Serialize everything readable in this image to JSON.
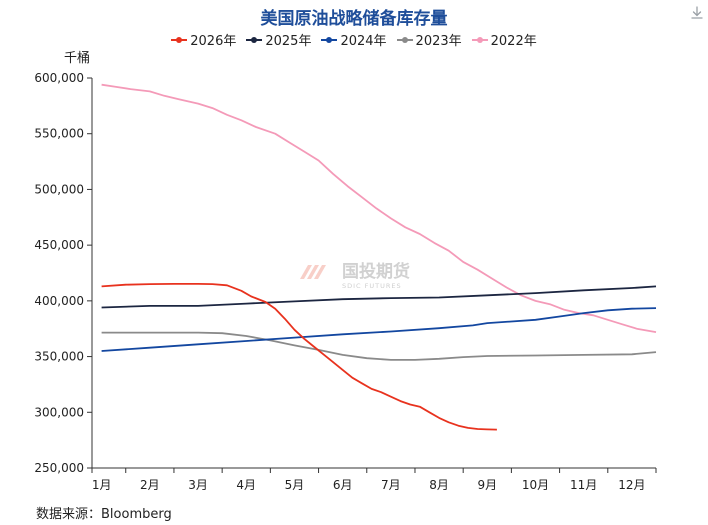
{
  "chart_data": {
    "type": "line",
    "title": "美国原油战略储备库存量",
    "unit_label": "千桶",
    "source": "数据来源：Bloomberg",
    "watermark": "国投期货",
    "watermark_en": "SDIC FUTURES",
    "ylim": [
      250000,
      600000
    ],
    "y_ticks": [
      250000,
      300000,
      350000,
      400000,
      450000,
      500000,
      550000,
      600000
    ],
    "y_tick_labels": [
      "250,000",
      "300,000",
      "350,000",
      "400,000",
      "450,000",
      "500,000",
      "550,000",
      "600,000"
    ],
    "xlim": [
      0.8,
      12.5
    ],
    "x_ticks": [
      1,
      2,
      3,
      4,
      5,
      6,
      7,
      8,
      9,
      10,
      11,
      12
    ],
    "x_tick_labels": [
      "1月",
      "2月",
      "3月",
      "4月",
      "5月",
      "6月",
      "7月",
      "8月",
      "9月",
      "10月",
      "11月",
      "12月"
    ],
    "grid": false,
    "legend_position": "top",
    "series": [
      {
        "name": "2026年",
        "color": "#e8321e",
        "x": [
          1,
          1.5,
          2,
          2.5,
          3,
          3.3,
          3.6,
          3.9,
          4.1,
          4.4,
          4.6,
          4.8,
          5.0,
          5.2,
          5.4,
          5.6,
          5.8,
          6.0,
          6.2,
          6.4,
          6.6,
          6.8,
          7.0,
          7.2,
          7.4,
          7.6,
          7.8,
          8.0,
          8.2,
          8.4,
          8.6,
          8.8,
          9.0,
          9.2
        ],
        "y": [
          413000,
          414500,
          415000,
          415200,
          415200,
          415000,
          414000,
          409000,
          404000,
          399000,
          393000,
          384000,
          374000,
          366000,
          359000,
          352000,
          345000,
          338000,
          331000,
          326000,
          321000,
          318000,
          314000,
          310000,
          307000,
          305000,
          300000,
          295000,
          291000,
          288000,
          286000,
          285000,
          284600,
          284500
        ]
      },
      {
        "name": "2025年",
        "color": "#1c2641",
        "x": [
          1,
          2,
          3,
          4,
          5,
          6,
          7,
          8,
          9,
          10,
          11,
          12,
          12.5
        ],
        "y": [
          394000,
          395500,
          395500,
          397500,
          399500,
          401500,
          402500,
          403000,
          405000,
          407000,
          409500,
          411500,
          413000
        ]
      },
      {
        "name": "2024年",
        "color": "#1347a0",
        "x": [
          1,
          2,
          3,
          4,
          5,
          6,
          7,
          8,
          8.7,
          9,
          9.5,
          10,
          10.5,
          11,
          11.5,
          12,
          12.5
        ],
        "y": [
          355000,
          358000,
          361000,
          364000,
          367000,
          370000,
          372500,
          375500,
          378000,
          380000,
          381500,
          383000,
          386000,
          389000,
          391500,
          393000,
          393500
        ]
      },
      {
        "name": "2023年",
        "color": "#8a8a8a",
        "x": [
          1,
          2,
          3,
          3.5,
          4,
          4.5,
          5,
          5.5,
          6,
          6.5,
          7,
          7.5,
          8,
          8.5,
          9,
          10,
          11,
          12,
          12.5
        ],
        "y": [
          371500,
          371500,
          371500,
          371000,
          368500,
          364500,
          360000,
          356000,
          351500,
          348500,
          347000,
          347000,
          348000,
          349500,
          350500,
          351000,
          351500,
          352000,
          354000
        ]
      },
      {
        "name": "2022年",
        "color": "#f49ab8",
        "x": [
          1,
          1.3,
          1.6,
          2.0,
          2.3,
          2.6,
          3.0,
          3.3,
          3.6,
          3.9,
          4.2,
          4.6,
          4.9,
          5.2,
          5.5,
          5.8,
          6.1,
          6.4,
          6.7,
          7.0,
          7.3,
          7.6,
          7.9,
          8.2,
          8.5,
          8.8,
          9.1,
          9.4,
          9.7,
          10.0,
          10.3,
          10.6,
          10.9,
          11.2,
          11.5,
          11.8,
          12.1,
          12.5
        ],
        "y": [
          594000,
          592000,
          590000,
          588000,
          584000,
          581000,
          577000,
          573000,
          567000,
          562000,
          556000,
          550000,
          542000,
          534000,
          526000,
          514000,
          503000,
          493000,
          483000,
          474000,
          466000,
          460000,
          452000,
          445000,
          435000,
          428000,
          420000,
          412000,
          405000,
          400000,
          397000,
          392000,
          389000,
          387000,
          383000,
          379000,
          375000,
          372000
        ]
      }
    ]
  }
}
